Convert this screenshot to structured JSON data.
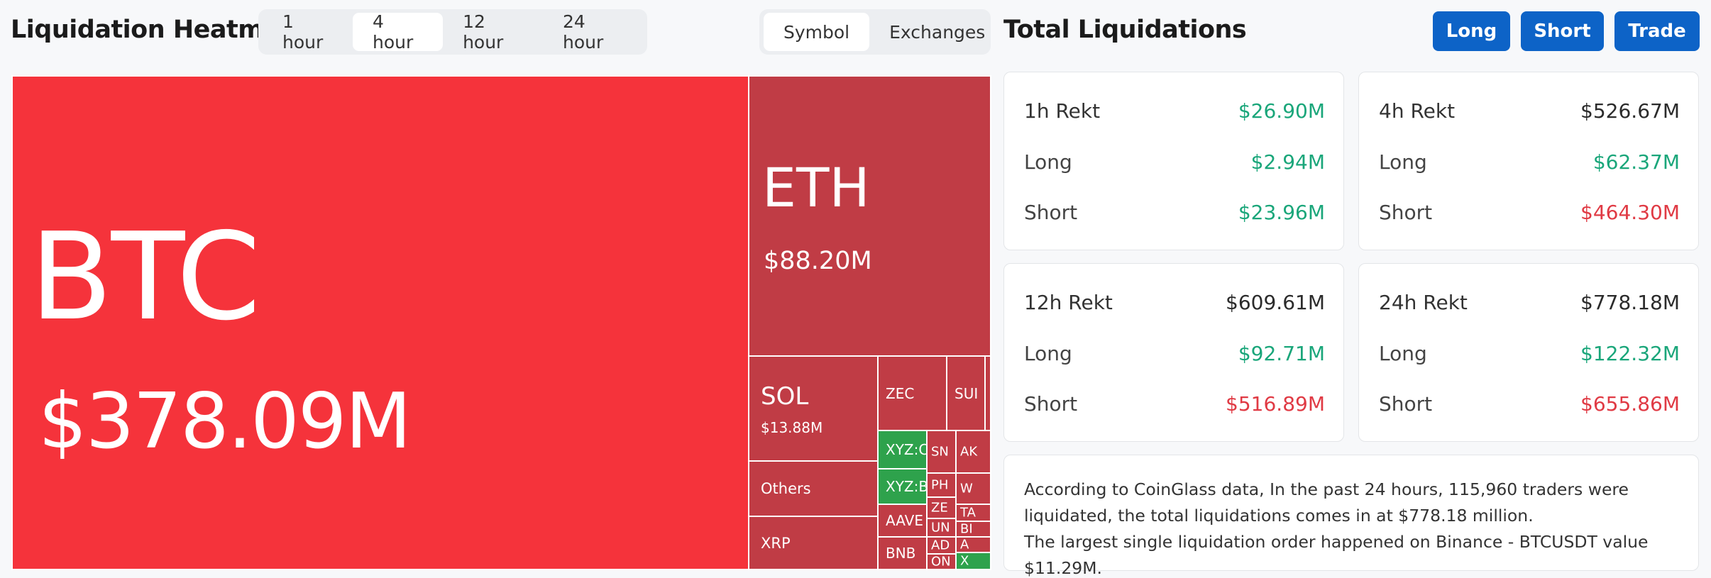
{
  "header": {
    "title": "Liquidation Heatmap",
    "time_tabs": [
      {
        "label": "1 hour",
        "active": false
      },
      {
        "label": "4 hour",
        "active": true
      },
      {
        "label": "12 hour",
        "active": false
      },
      {
        "label": "24 hour",
        "active": false
      }
    ],
    "view_tabs": [
      {
        "label": "Symbol",
        "active": true
      },
      {
        "label": "Exchanges",
        "active": false
      }
    ]
  },
  "treemap": {
    "tiles": [
      {
        "symbol": "BTC",
        "value": "$378.09M"
      },
      {
        "symbol": "ETH",
        "value": "$88.20M"
      },
      {
        "symbol": "SOL",
        "value": "$13.88M"
      },
      {
        "symbol": "Others"
      },
      {
        "symbol": "XRP"
      },
      {
        "symbol": "ZEC"
      },
      {
        "symbol": "SUI"
      },
      {
        "symbol": "XYZ:C"
      },
      {
        "symbol": "XYZ:B"
      },
      {
        "symbol": "AAVE"
      },
      {
        "symbol": "BNB"
      },
      {
        "symbol": "SN"
      },
      {
        "symbol": "AK"
      },
      {
        "symbol": "PH"
      },
      {
        "symbol": "W"
      },
      {
        "symbol": "ZE"
      },
      {
        "symbol": "TA"
      },
      {
        "symbol": "UN"
      },
      {
        "symbol": "BI"
      },
      {
        "symbol": "AD"
      },
      {
        "symbol": "A"
      },
      {
        "symbol": "ON"
      },
      {
        "symbol": "X"
      }
    ]
  },
  "totals": {
    "title": "Total Liquidations",
    "buttons": {
      "long": "Long",
      "short": "Short",
      "trade": "Trade"
    },
    "cards": [
      {
        "title": "1h Rekt",
        "total": "$26.90M",
        "long_label": "Long",
        "long": "$2.94M",
        "short_label": "Short",
        "short": "$23.96M"
      },
      {
        "title": "4h Rekt",
        "total": "$526.67M",
        "long_label": "Long",
        "long": "$62.37M",
        "short_label": "Short",
        "short": "$464.30M"
      },
      {
        "title": "12h Rekt",
        "total": "$609.61M",
        "long_label": "Long",
        "long": "$92.71M",
        "short_label": "Short",
        "short": "$516.89M"
      },
      {
        "title": "24h Rekt",
        "total": "$778.18M",
        "long_label": "Long",
        "long": "$122.32M",
        "short_label": "Short",
        "short": "$655.86M"
      }
    ],
    "info_line1": "According to CoinGlass data, In the past 24 hours, 115,960 traders were liquidated, the total liquidations comes in at $778.18 million.",
    "info_line2": "The largest single liquidation order happened on Binance - BTCUSDT value $11.29M."
  },
  "colors": {
    "red_primary": "#f5333b",
    "red_secondary": "#c03c45",
    "green_tile": "#2ea24c",
    "value_green": "#1aa67a",
    "value_red": "#e03a44",
    "value_dark": "#2b2b2b",
    "button_blue": "#0d63c7"
  }
}
